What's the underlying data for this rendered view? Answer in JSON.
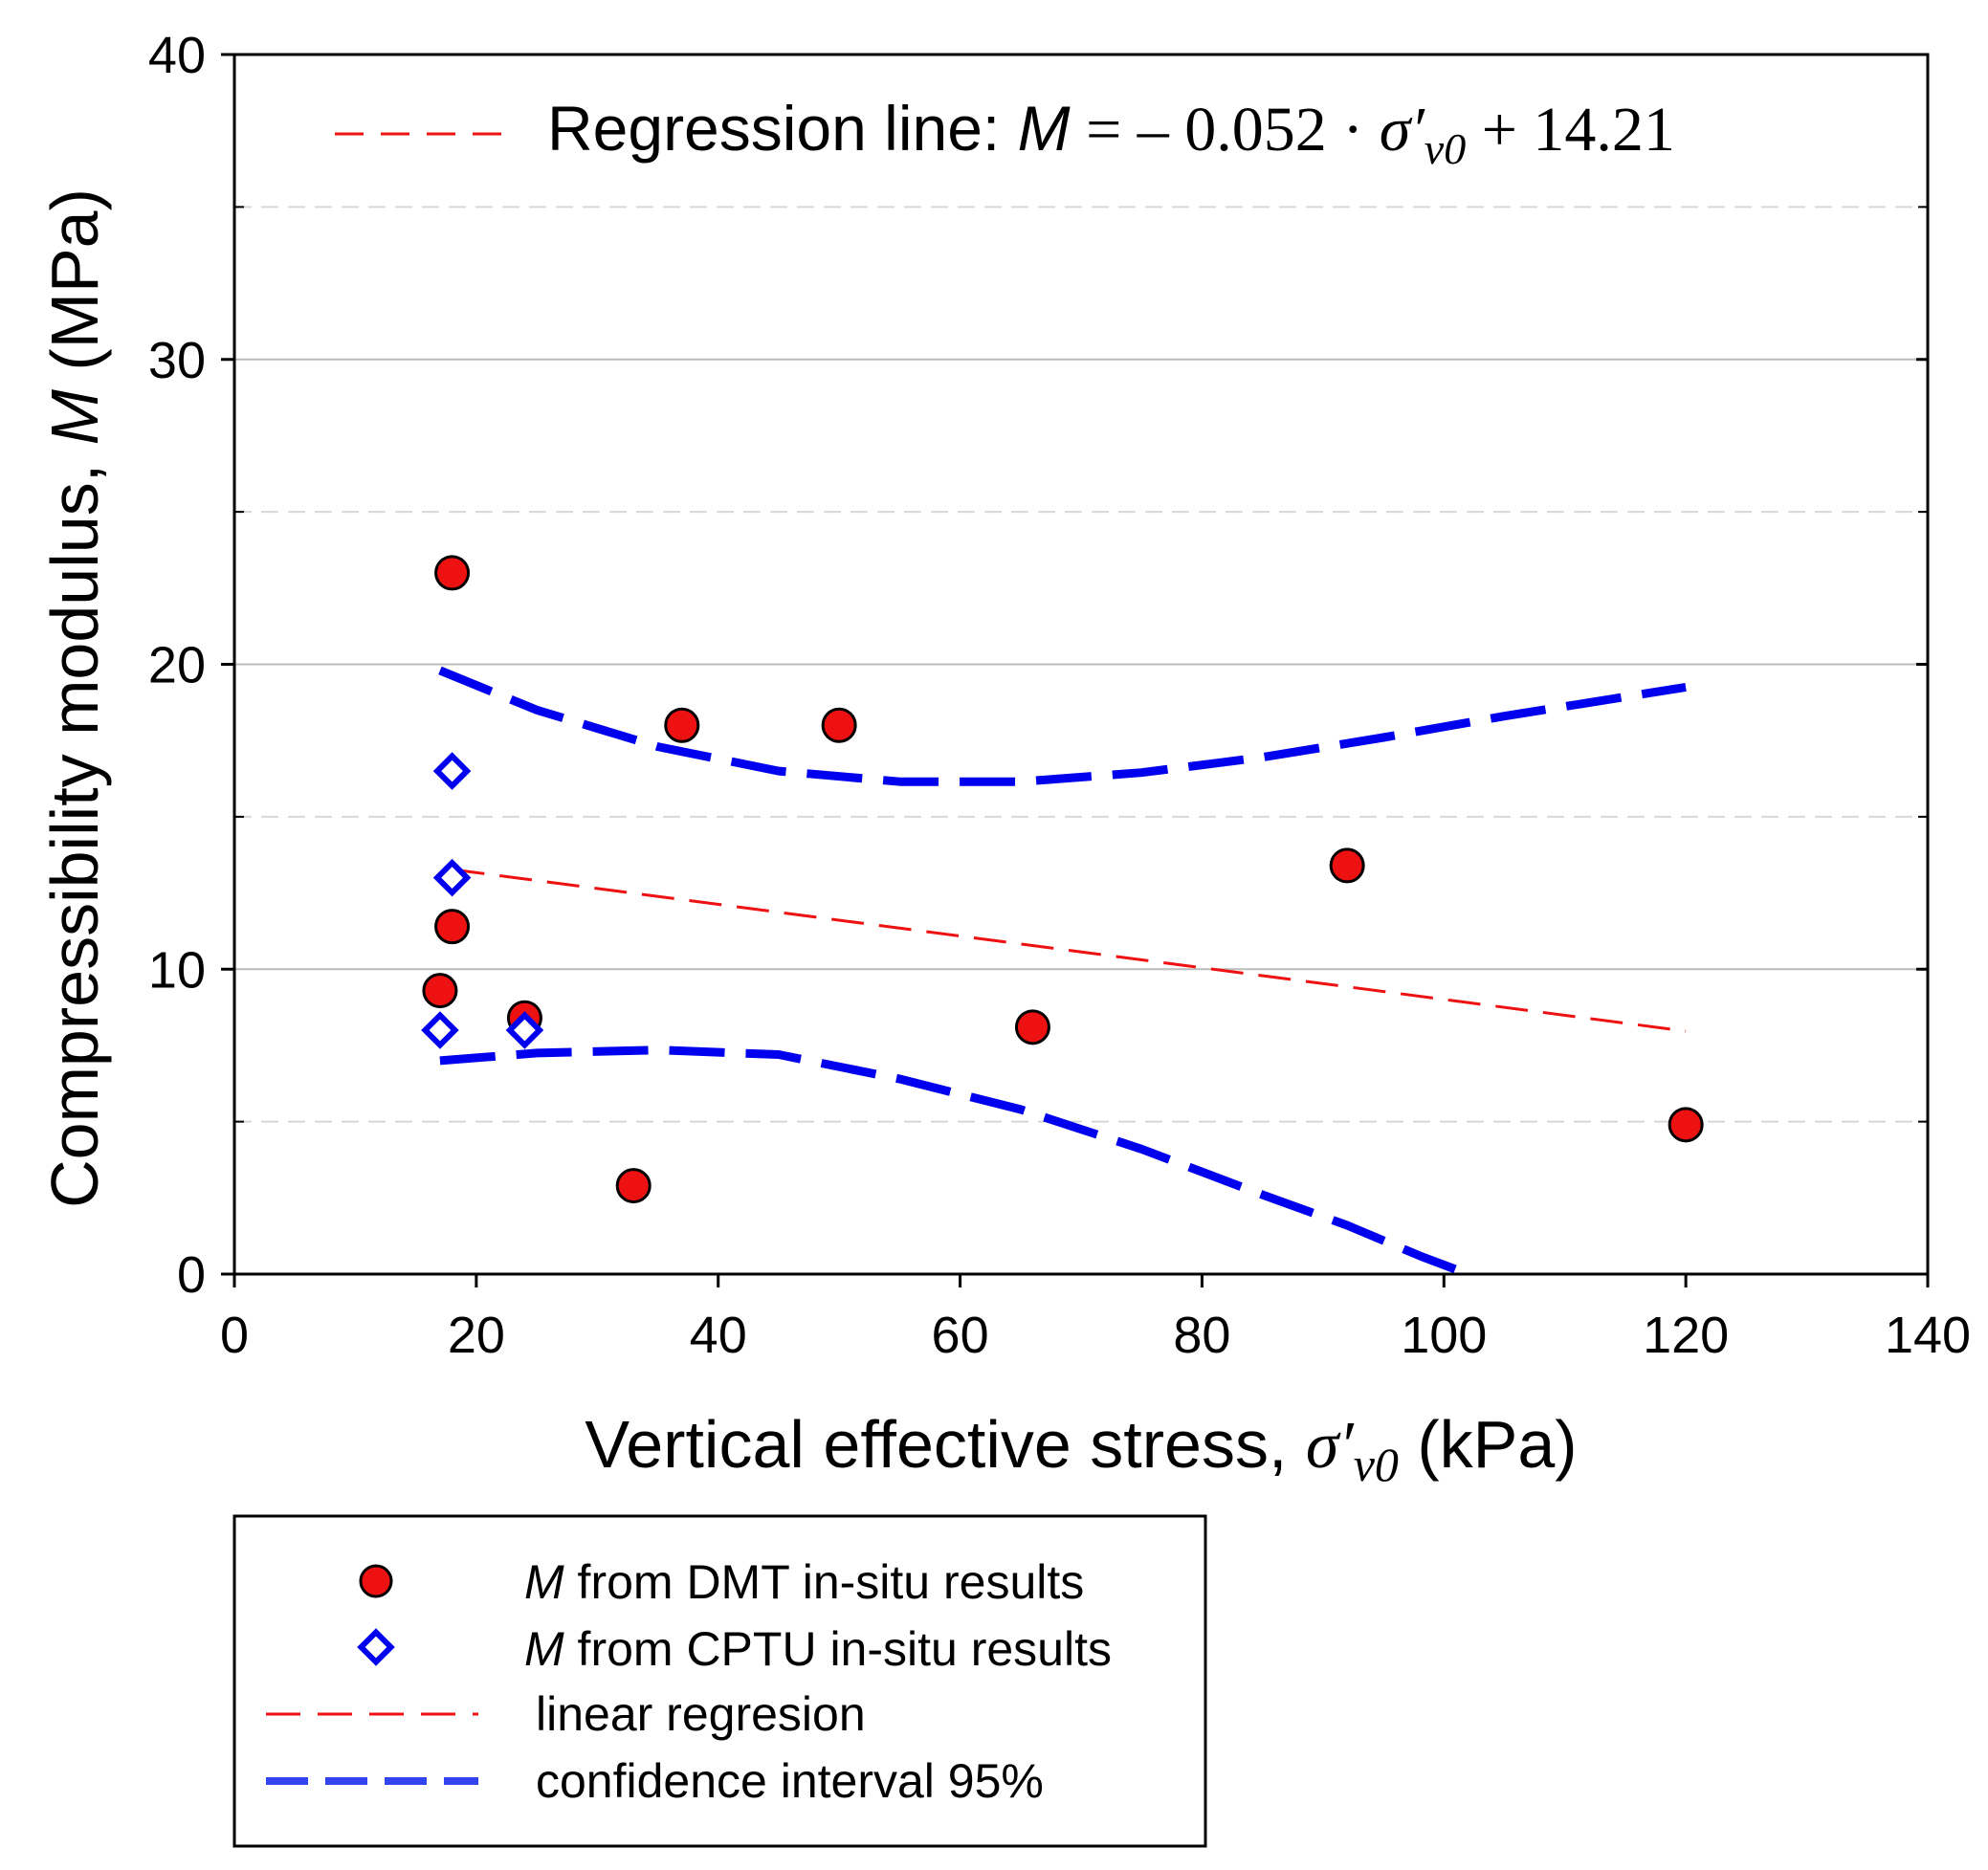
{
  "chart_data": {
    "type": "scatter",
    "xlabel": {
      "prefix": "Vertical effective stress, ",
      "symbol": "σ′",
      "subscript": "v0",
      "unit": " (kPa)"
    },
    "ylabel": {
      "prefix": "Compressibility modulus, ",
      "symbol": "M",
      "unit": " (MPa)"
    },
    "xlim": [
      0,
      140
    ],
    "ylim": [
      0,
      40
    ],
    "xticks": [
      0,
      20,
      40,
      60,
      80,
      100,
      120,
      140
    ],
    "yticks": [
      0,
      10,
      20,
      30,
      40
    ],
    "gridlines": {
      "major_y": [
        10,
        20,
        30
      ],
      "minor_y": [
        5,
        15,
        25,
        35
      ]
    },
    "series": [
      {
        "name": "M from DMT in-situ results",
        "marker": "circle",
        "color": "#ee1111",
        "x": [
          18,
          18,
          17,
          24,
          33,
          37,
          50,
          66,
          92,
          120
        ],
        "y": [
          23,
          11.4,
          9.3,
          8.4,
          2.9,
          18,
          18,
          8.1,
          13.4,
          4.9
        ]
      },
      {
        "name": "M from CPTU in-situ results",
        "marker": "diamond",
        "color": "#0000ee",
        "x": [
          18,
          18,
          17,
          24
        ],
        "y": [
          16.5,
          13,
          8,
          8
        ]
      }
    ],
    "lines": [
      {
        "name": "linear regresion",
        "style": "thin-dash",
        "color": "#ee1111",
        "x": [
          18,
          120
        ],
        "y": [
          13.27,
          7.97
        ]
      },
      {
        "name": "confidence interval 95%",
        "part": "upper",
        "style": "thick-dash",
        "color": "#0000ee",
        "x": [
          17,
          25,
          35,
          45,
          55,
          65,
          75,
          85,
          95,
          105,
          120
        ],
        "y": [
          19.8,
          18.5,
          17.3,
          16.5,
          16.15,
          16.15,
          16.45,
          16.95,
          17.6,
          18.3,
          19.25
        ]
      },
      {
        "name": "confidence interval 95%",
        "part": "lower",
        "style": "thick-dash",
        "color": "#0000ee",
        "x": [
          17,
          25,
          35,
          45,
          55,
          65,
          75,
          85,
          92,
          98,
          102
        ],
        "y": [
          7.0,
          7.25,
          7.35,
          7.2,
          6.4,
          5.4,
          4.1,
          2.6,
          1.6,
          0.6,
          0
        ]
      }
    ],
    "annotation": {
      "label": "Regression line: ",
      "var": "M",
      "eq_part": " = – 0.052 · ",
      "sym": "σ′",
      "sub": "v0",
      "tail": " + 14.21"
    },
    "legend": {
      "placement": "below-left",
      "entries": [
        {
          "italic": "M",
          "text": " from DMT in-situ results"
        },
        {
          "italic": "M",
          "text": " from CPTU in-situ results"
        },
        {
          "italic": "",
          "text": "linear regresion"
        },
        {
          "italic": "",
          "text": "confidence interval 95%"
        }
      ]
    }
  }
}
